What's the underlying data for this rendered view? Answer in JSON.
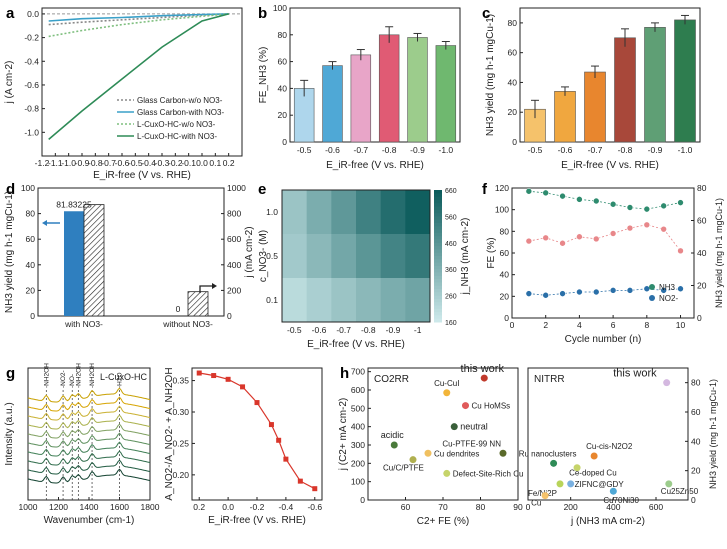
{
  "chart_data": [
    {
      "panel": "a",
      "type": "line",
      "xlabel": "E_iR-free (V vs. RHE)",
      "ylabel": "j (A cm-2)",
      "xlim": [
        -1.2,
        0.3
      ],
      "ylim": [
        -1.2,
        0.05
      ],
      "xticks": [
        "-1.2",
        "-1.1",
        "-1.0",
        "-0.9",
        "-0.8",
        "-0.7",
        "-0.6",
        "-0.5",
        "-0.4",
        "-0.3",
        "-0.2",
        "-0.1",
        "0.0",
        "0.1",
        "0.2"
      ],
      "yticks": [
        "0.0",
        "-0.2",
        "-0.4",
        "-0.6",
        "-0.8",
        "-1.0"
      ],
      "series": [
        {
          "name": "Glass Carbon-w/o NO3-",
          "style": "dotted",
          "color": "#888888",
          "x": [
            -1.15,
            -0.9,
            -0.6,
            -0.3,
            0.0,
            0.2
          ],
          "y": [
            -0.09,
            -0.07,
            -0.05,
            -0.03,
            -0.01,
            0.0
          ]
        },
        {
          "name": "Glass Carbon-with NO3-",
          "style": "solid",
          "color": "#3aa0c8",
          "x": [
            -1.15,
            -0.9,
            -0.6,
            -0.3,
            0.0,
            0.2
          ],
          "y": [
            -0.06,
            -0.04,
            -0.03,
            -0.015,
            -0.005,
            0.0
          ]
        },
        {
          "name": "L-CuxO-HC-w/o NO3-",
          "style": "dotted",
          "color": "#7fbf7f",
          "x": [
            -1.15,
            -0.9,
            -0.6,
            -0.3,
            0.0,
            0.2
          ],
          "y": [
            -0.19,
            -0.14,
            -0.09,
            -0.05,
            -0.02,
            0.0
          ]
        },
        {
          "name": "L-CuxO-HC-with NO3-",
          "style": "solid",
          "color": "#2e8b57",
          "x": [
            -1.15,
            -0.9,
            -0.6,
            -0.3,
            0.0,
            0.2
          ],
          "y": [
            -1.06,
            -0.82,
            -0.55,
            -0.28,
            -0.06,
            0.0
          ]
        }
      ]
    },
    {
      "panel": "b",
      "type": "bar",
      "xlabel": "E_iR-free (V vs. RHE)",
      "ylabel": "FE_NH3 (%)",
      "categories": [
        "-0.5",
        "-0.6",
        "-0.7",
        "-0.8",
        "-0.9",
        "-1.0"
      ],
      "values": [
        40,
        57,
        65,
        80,
        78,
        72
      ],
      "errors": [
        6,
        3,
        4,
        6,
        3,
        3
      ],
      "colors": [
        "#aed6ec",
        "#4fa8d6",
        "#e8a5c8",
        "#e05b74",
        "#9ccc8c",
        "#6fb86f"
      ],
      "ylim": [
        0,
        100
      ],
      "yticks": [
        "0",
        "20",
        "40",
        "60",
        "80",
        "100"
      ]
    },
    {
      "panel": "c",
      "type": "bar",
      "xlabel": "E_iR-free (V vs. RHE)",
      "ylabel": "NH3 yield (mg h-1 mgCu-1)",
      "categories": [
        "-0.5",
        "-0.6",
        "-0.7",
        "-0.8",
        "-0.9",
        "-1.0"
      ],
      "values": [
        22,
        34,
        47,
        70,
        77,
        82
      ],
      "errors": [
        6,
        3,
        4,
        6,
        3,
        3
      ],
      "colors": [
        "#f5c26b",
        "#f0a73f",
        "#e8862e",
        "#a8483a",
        "#5f9f75",
        "#2e7d4f"
      ],
      "ylim": [
        0,
        90
      ],
      "yticks": [
        "0",
        "20",
        "40",
        "60",
        "80"
      ]
    },
    {
      "panel": "d",
      "type": "bar",
      "ylabel": "NH3 yield (mg h-1 mgCu-1)",
      "y2label": "j (mA cm-2)",
      "categories": [
        "with NO3-",
        "without NO3-"
      ],
      "yield_values": [
        81.83225,
        0
      ],
      "yield_labels": [
        "81.83225",
        "0"
      ],
      "current_values": [
        870,
        190
      ],
      "ylim": [
        0,
        100
      ],
      "y2lim": [
        0,
        1000
      ],
      "yticks": [
        "0",
        "20",
        "40",
        "60",
        "80",
        "100"
      ],
      "y2ticks": [
        "0",
        "200",
        "400",
        "600",
        "800",
        "1000"
      ]
    },
    {
      "panel": "e",
      "type": "heatmap",
      "xlabel": "E_iR-free (V vs. RHE)",
      "ylabel": "c_NO3- (M)",
      "colorbar_label": "j_NH3 (mA cm-2)",
      "x": [
        "-0.5",
        "-0.6",
        "-0.7",
        "-0.8",
        "-0.9",
        "-1"
      ],
      "y": [
        "1.0",
        "0.5",
        "0.1"
      ],
      "z": [
        [
          300,
          380,
          450,
          530,
          600,
          650
        ],
        [
          280,
          340,
          400,
          460,
          520,
          560
        ],
        [
          220,
          260,
          300,
          340,
          380,
          410
        ]
      ],
      "colorbar_ticks": [
        "160",
        "260",
        "360",
        "460",
        "560",
        "660"
      ],
      "zlim": [
        160,
        660
      ]
    },
    {
      "panel": "f",
      "type": "scatter",
      "xlabel": "Cycle number (n)",
      "ylabel": "FE (%)",
      "y2label": "NH3 yield (mg h-1 mgCu-1)",
      "xlim": [
        0,
        10.8
      ],
      "ylim": [
        0,
        120
      ],
      "y2lim": [
        0,
        80
      ],
      "xticks": [
        "0",
        "2",
        "4",
        "6",
        "8",
        "10"
      ],
      "yticks": [
        "0",
        "20",
        "40",
        "60",
        "80",
        "100",
        "120"
      ],
      "y2ticks": [
        "0",
        "20",
        "40",
        "60",
        "80"
      ],
      "series": [
        {
          "name": "FE",
          "axis": "left",
          "color": "#e8878a",
          "x": [
            1,
            2,
            3,
            4,
            5,
            6,
            7,
            8,
            9,
            10
          ],
          "y": [
            71,
            74,
            69,
            75,
            73,
            78,
            83,
            86,
            82,
            62
          ]
        },
        {
          "name": "NH3",
          "axis": "right",
          "color": "#2e8b6e",
          "x": [
            1,
            2,
            3,
            4,
            5,
            6,
            7,
            8,
            9,
            10
          ],
          "y": [
            78,
            77,
            75,
            73,
            72,
            70,
            68,
            67,
            69,
            71
          ]
        },
        {
          "name": "NO2-",
          "axis": "right",
          "color": "#2a6fa8",
          "x": [
            1,
            2,
            3,
            4,
            5,
            6,
            7,
            8,
            9,
            10
          ],
          "y": [
            15,
            14,
            15,
            16,
            16,
            17,
            17,
            18,
            17,
            18
          ]
        }
      ],
      "legend": [
        "NH3",
        "NO2-"
      ]
    },
    {
      "panel": "g-left",
      "type": "line",
      "title": "L-CuxO-HC",
      "xlabel": "Wavenumber (cm-1)",
      "ylabel": "Intensity (a.u.)",
      "xlim": [
        1000,
        1800
      ],
      "xticks": [
        "1000",
        "1200",
        "1400",
        "1600",
        "1800"
      ],
      "annotations": [
        "-NH2OH",
        "-NO2-",
        "-NO-",
        "-NH2OH",
        "-NH2OH",
        "-H2O"
      ],
      "n_spectra": 10,
      "colors": [
        "#c8a000",
        "#d6a400",
        "#c9b030",
        "#a9b04a",
        "#7fa060",
        "#5c8f5c",
        "#3f7f55",
        "#2e6b4a",
        "#1f5a40",
        "#10402e"
      ]
    },
    {
      "panel": "g-right",
      "type": "line",
      "xlabel": "E_iR-free (V vs. RHE)",
      "ylabel": "A_NO2-/A_NO2- + A_NH2OH",
      "x": [
        0.2,
        0.1,
        0.0,
        -0.1,
        -0.2,
        -0.3,
        -0.35,
        -0.4,
        -0.5,
        -0.6
      ],
      "y": [
        0.362,
        0.358,
        0.352,
        0.34,
        0.315,
        0.28,
        0.255,
        0.225,
        0.19,
        0.178
      ],
      "xlim": [
        0.25,
        -0.65
      ],
      "ylim": [
        0.16,
        0.37
      ],
      "xticks": [
        "0.2",
        "0.0",
        "-0.2",
        "-0.4",
        "-0.6"
      ],
      "yticks": [
        "0.20",
        "0.25",
        "0.30",
        "0.35"
      ],
      "color": "#d9362b"
    },
    {
      "panel": "h-left",
      "type": "scatter",
      "title": "CO2RR",
      "xlabel": "C2+ FE (%)",
      "ylabel": "j (C2+ mA cm-2)",
      "xlim": [
        50,
        90
      ],
      "ylim": [
        0,
        720
      ],
      "xticks": [
        "60",
        "70",
        "80",
        "90"
      ],
      "yticks": [
        "0",
        "100",
        "200",
        "300",
        "400",
        "500",
        "600",
        "700"
      ],
      "points": [
        {
          "label": "this work",
          "x": 81,
          "y": 665,
          "color": "#c0392b"
        },
        {
          "label": "Cu-CuI",
          "x": 71,
          "y": 585,
          "color": "#f2b53a"
        },
        {
          "label": "Cu HoMSs",
          "x": 76,
          "y": 515,
          "color": "#e05a5a"
        },
        {
          "label": "neutral",
          "x": 73,
          "y": 400,
          "color": "#3a5f3a"
        },
        {
          "label": "acidic",
          "x": 57,
          "y": 300,
          "color": "#4a7a3a"
        },
        {
          "label": "Cu dendrites",
          "x": 66,
          "y": 255,
          "color": "#f0c060"
        },
        {
          "label": "Cu-PTFE-99 NN",
          "x": 86,
          "y": 255,
          "color": "#5a6a2a"
        },
        {
          "label": "Cu/C/PTFE",
          "x": 62,
          "y": 220,
          "color": "#b0b050"
        },
        {
          "label": "Defect-Site-Rich Cu",
          "x": 71,
          "y": 145,
          "color": "#c6d46a"
        }
      ],
      "text_labels": [
        "this work",
        "Cu-CuI",
        "Cu HoMSs",
        "neutral",
        "acidic",
        "Cu dendrites",
        "Cu-PTFE-99 NN",
        "Cu/C/PTFE",
        "Defect-Site-Rich Cu"
      ]
    },
    {
      "panel": "h-right",
      "type": "scatter",
      "title": "NITRR",
      "xlabel": "j (NH3 mA cm-2)",
      "ylabel": "NH3 yield (mg h-1 mgCu-1)",
      "xlim": [
        0,
        750
      ],
      "ylim": [
        0,
        90
      ],
      "xticks": [
        "0",
        "200",
        "400",
        "600"
      ],
      "yticks": [
        "0",
        "20",
        "40",
        "60",
        "80"
      ],
      "points": [
        {
          "label": "this work",
          "x": 650,
          "y": 80,
          "color": "#d4b8e0"
        },
        {
          "label": "Cu-cis-N2O2",
          "x": 310,
          "y": 30,
          "color": "#e8862e"
        },
        {
          "label": "Ru nanoclusters",
          "x": 120,
          "y": 25,
          "color": "#2e8b57"
        },
        {
          "label": "Ce-doped Cu",
          "x": 230,
          "y": 22,
          "color": "#c6d46a"
        },
        {
          "label": "Fe/Ni2P",
          "x": 150,
          "y": 11,
          "color": "#b8d45a"
        },
        {
          "label": "ZIFNC@GDY",
          "x": 200,
          "y": 11,
          "color": "#7ab0e0"
        },
        {
          "label": "Cu",
          "x": 80,
          "y": 3,
          "color": "#f5c26b"
        },
        {
          "label": "Cu70Ni30",
          "x": 400,
          "y": 6,
          "color": "#4fa8d6"
        },
        {
          "label": "Cu25Zn50",
          "x": 660,
          "y": 11,
          "color": "#9ccc8c"
        }
      ],
      "text_labels": [
        "this work",
        "Cu-cis-N2O2",
        "Ru nanoclusters",
        "Ce-doped Cu",
        "Fe/Ni2P",
        "ZIFNC@GDY",
        "Cu",
        "Cu70Ni30",
        "Cu25Zn50"
      ]
    }
  ]
}
